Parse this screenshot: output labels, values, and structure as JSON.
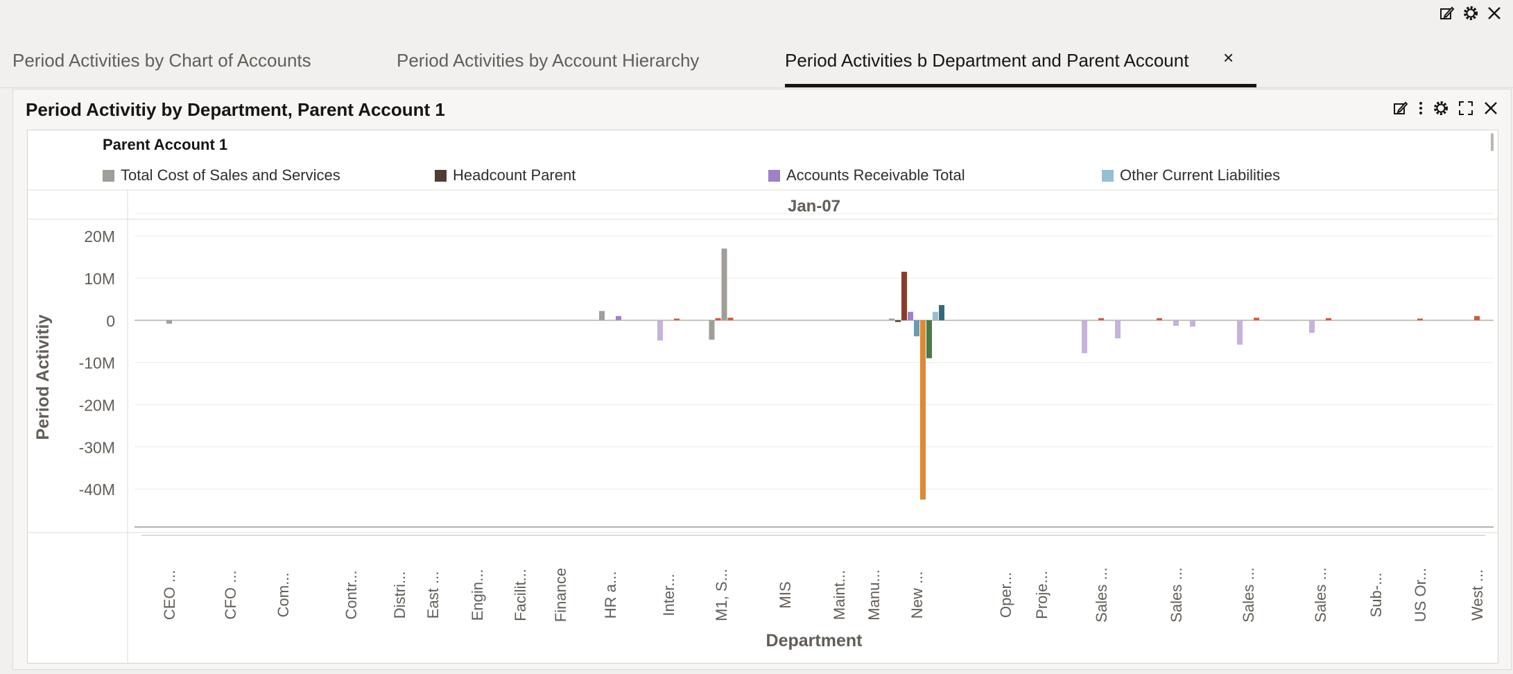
{
  "tabs": [
    {
      "label": "Period Activities by Chart of Accounts"
    },
    {
      "label": "Period Activities by Account Hierarchy"
    },
    {
      "label": "Period Activities b Department and Parent Account",
      "close": "×"
    }
  ],
  "panel": {
    "title": "Period Activitiy by Department, Parent Account 1"
  },
  "icons": {
    "top": [
      "edit-icon",
      "gear-icon",
      "close-icon"
    ],
    "panel": [
      "edit-icon",
      "more-vertical-icon",
      "gear-icon",
      "expand-icon",
      "close-icon"
    ]
  },
  "colors": {
    "axis": "#b5b1ad",
    "grid": "#ecebea",
    "text": "#625d57"
  },
  "chart_data": {
    "type": "bar",
    "legend_title": "Parent Account 1",
    "legend": [
      {
        "name": "Total Cost of Sales and Services",
        "color": "#a19e99"
      },
      {
        "name": "Headcount Parent",
        "color": "#4f3e36"
      },
      {
        "name": "Accounts Receivable Total",
        "color": "#9e81c9"
      },
      {
        "name": "Other Current Liabilities",
        "color": "#96bfd0"
      }
    ],
    "period": "Jan-07",
    "ylabel": "Period Activitiy",
    "xlabel": "Department",
    "ylim": [
      -49,
      22
    ],
    "yticks": [
      20,
      10,
      0,
      -10,
      -20,
      -30,
      -40
    ],
    "ytick_labels": [
      "20M",
      "10M",
      "0",
      "-10M",
      "-20M",
      "-30M",
      "-40M"
    ],
    "categories": [
      "CEO ...",
      "CFO ...",
      "Com...",
      "Contr...",
      "Distri...",
      "East ...",
      "Engin...",
      "Facilit...",
      "Finance",
      "HR a...",
      "Inter...",
      "M1, S...",
      "MIS",
      "Maint...",
      "Manu...",
      "New ...",
      "Oper...",
      "Proje...",
      "Sales ...",
      "Sales ...",
      "Sales ...",
      "Sales ...",
      "Sub-...",
      "US Or...",
      "West ..."
    ],
    "bars": [
      {
        "category": 0,
        "value": -0.8,
        "color": "#a19e99"
      },
      {
        "category": 9,
        "value": 2.2,
        "color": "#a19e99"
      },
      {
        "category": 9,
        "value": 1.0,
        "color": "#9e81c9"
      },
      {
        "category": 10,
        "value": -4.8,
        "color": "#c5b3dc"
      },
      {
        "category": 10,
        "value": 0.4,
        "color": "#d05a3c"
      },
      {
        "category": 11,
        "value": -4.6,
        "color": "#a19e99"
      },
      {
        "category": 11,
        "value": 0.5,
        "color": "#d05a3c"
      },
      {
        "category": 11,
        "value": 17.0,
        "color": "#a19e99"
      },
      {
        "category": 11,
        "value": 0.6,
        "color": "#d05a3c"
      },
      {
        "category": 15,
        "value": 0.4,
        "color": "#a19e99"
      },
      {
        "category": 15,
        "value": -0.4,
        "color": "#4f3e36"
      },
      {
        "category": 15,
        "value": 11.5,
        "color": "#8a3d2b"
      },
      {
        "category": 15,
        "value": 2.0,
        "color": "#9e81c9"
      },
      {
        "category": 15,
        "value": -3.8,
        "color": "#6b9bb0"
      },
      {
        "category": 15,
        "value": -42.5,
        "color": "#dd8a36"
      },
      {
        "category": 15,
        "value": -9.0,
        "color": "#4a7a45"
      },
      {
        "category": 15,
        "value": 2.0,
        "color": "#96bfd0"
      },
      {
        "category": 15,
        "value": 3.6,
        "color": "#2f6b7d"
      },
      {
        "category": 18,
        "value": -7.8,
        "color": "#c5b3dc"
      },
      {
        "category": 18,
        "value": 0.5,
        "color": "#d05a3c"
      },
      {
        "category": 18,
        "value": -4.3,
        "color": "#c5b3dc"
      },
      {
        "category": 19,
        "value": 0.5,
        "color": "#d05a3c"
      },
      {
        "category": 19,
        "value": -1.3,
        "color": "#c5b3dc"
      },
      {
        "category": 19,
        "value": -1.5,
        "color": "#c5b3dc"
      },
      {
        "category": 20,
        "value": -5.8,
        "color": "#c5b3dc"
      },
      {
        "category": 20,
        "value": 0.6,
        "color": "#d05a3c"
      },
      {
        "category": 21,
        "value": -3.0,
        "color": "#c5b3dc"
      },
      {
        "category": 21,
        "value": 0.5,
        "color": "#d05a3c"
      },
      {
        "category": 23,
        "value": 0.4,
        "color": "#d05a3c"
      },
      {
        "category": 24,
        "value": 1.0,
        "color": "#d05a3c"
      }
    ]
  }
}
